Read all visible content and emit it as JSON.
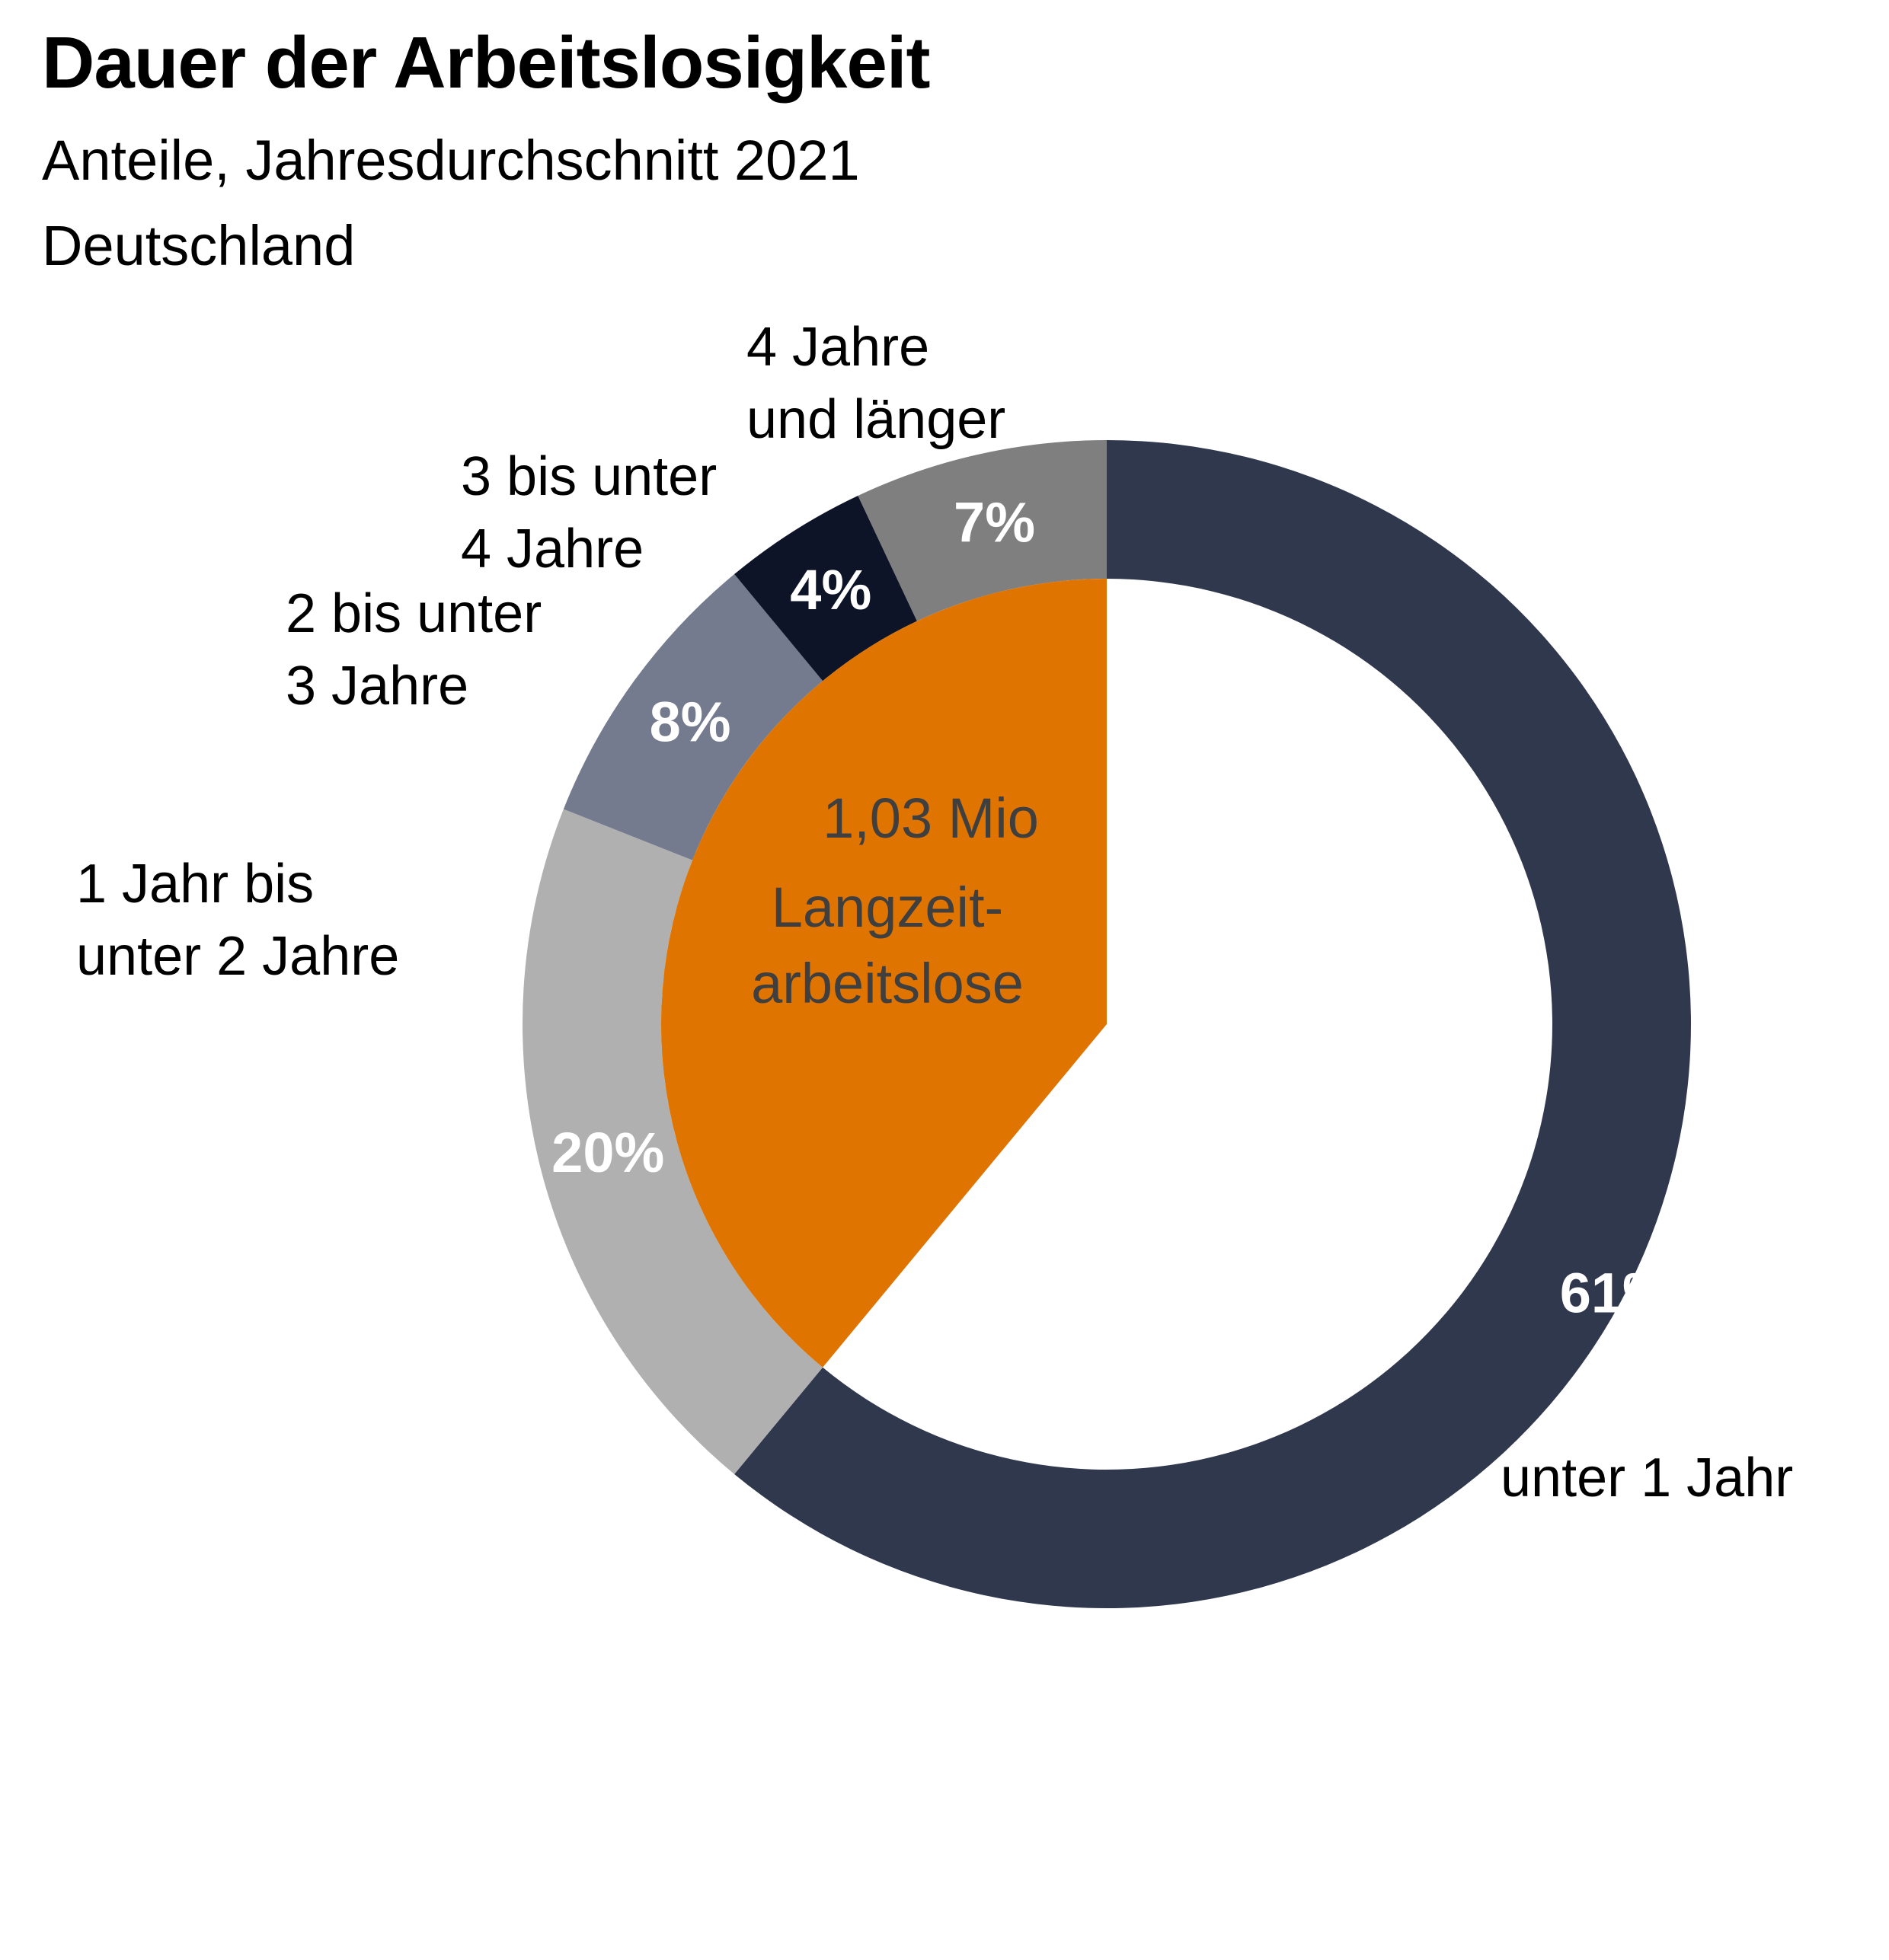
{
  "header": {
    "title": "Dauer der Arbeitslosigkeit",
    "subtitle": "Anteile, Jahresdurchschnitt 2021",
    "region": "Deutschland"
  },
  "chart_data": {
    "type": "pie",
    "variant": "donut",
    "slices": [
      {
        "label": [
          "unter 1 Jahr"
        ],
        "value": 61,
        "value_label": "61%",
        "color": "#30384d"
      },
      {
        "label": [
          "1 Jahr bis",
          "unter 2 Jahre"
        ],
        "value": 20,
        "value_label": "20%",
        "color": "#b0b0b0"
      },
      {
        "label": [
          "2 bis unter",
          "3 Jahre"
        ],
        "value": 8,
        "value_label": "8%",
        "color": "#757b8e"
      },
      {
        "label": [
          "3 bis unter",
          "4 Jahre"
        ],
        "value": 4,
        "value_label": "4%",
        "color": "#0e1428"
      },
      {
        "label": [
          "4 Jahre",
          "und länger"
        ],
        "value": 7,
        "value_label": "7%",
        "color": "#7f7f7f"
      }
    ],
    "center": {
      "highlight_share": 39,
      "highlight_color": "#e07400",
      "lines": [
        "1,03 Mio",
        "Langzeit-",
        "arbeitslose"
      ]
    }
  }
}
